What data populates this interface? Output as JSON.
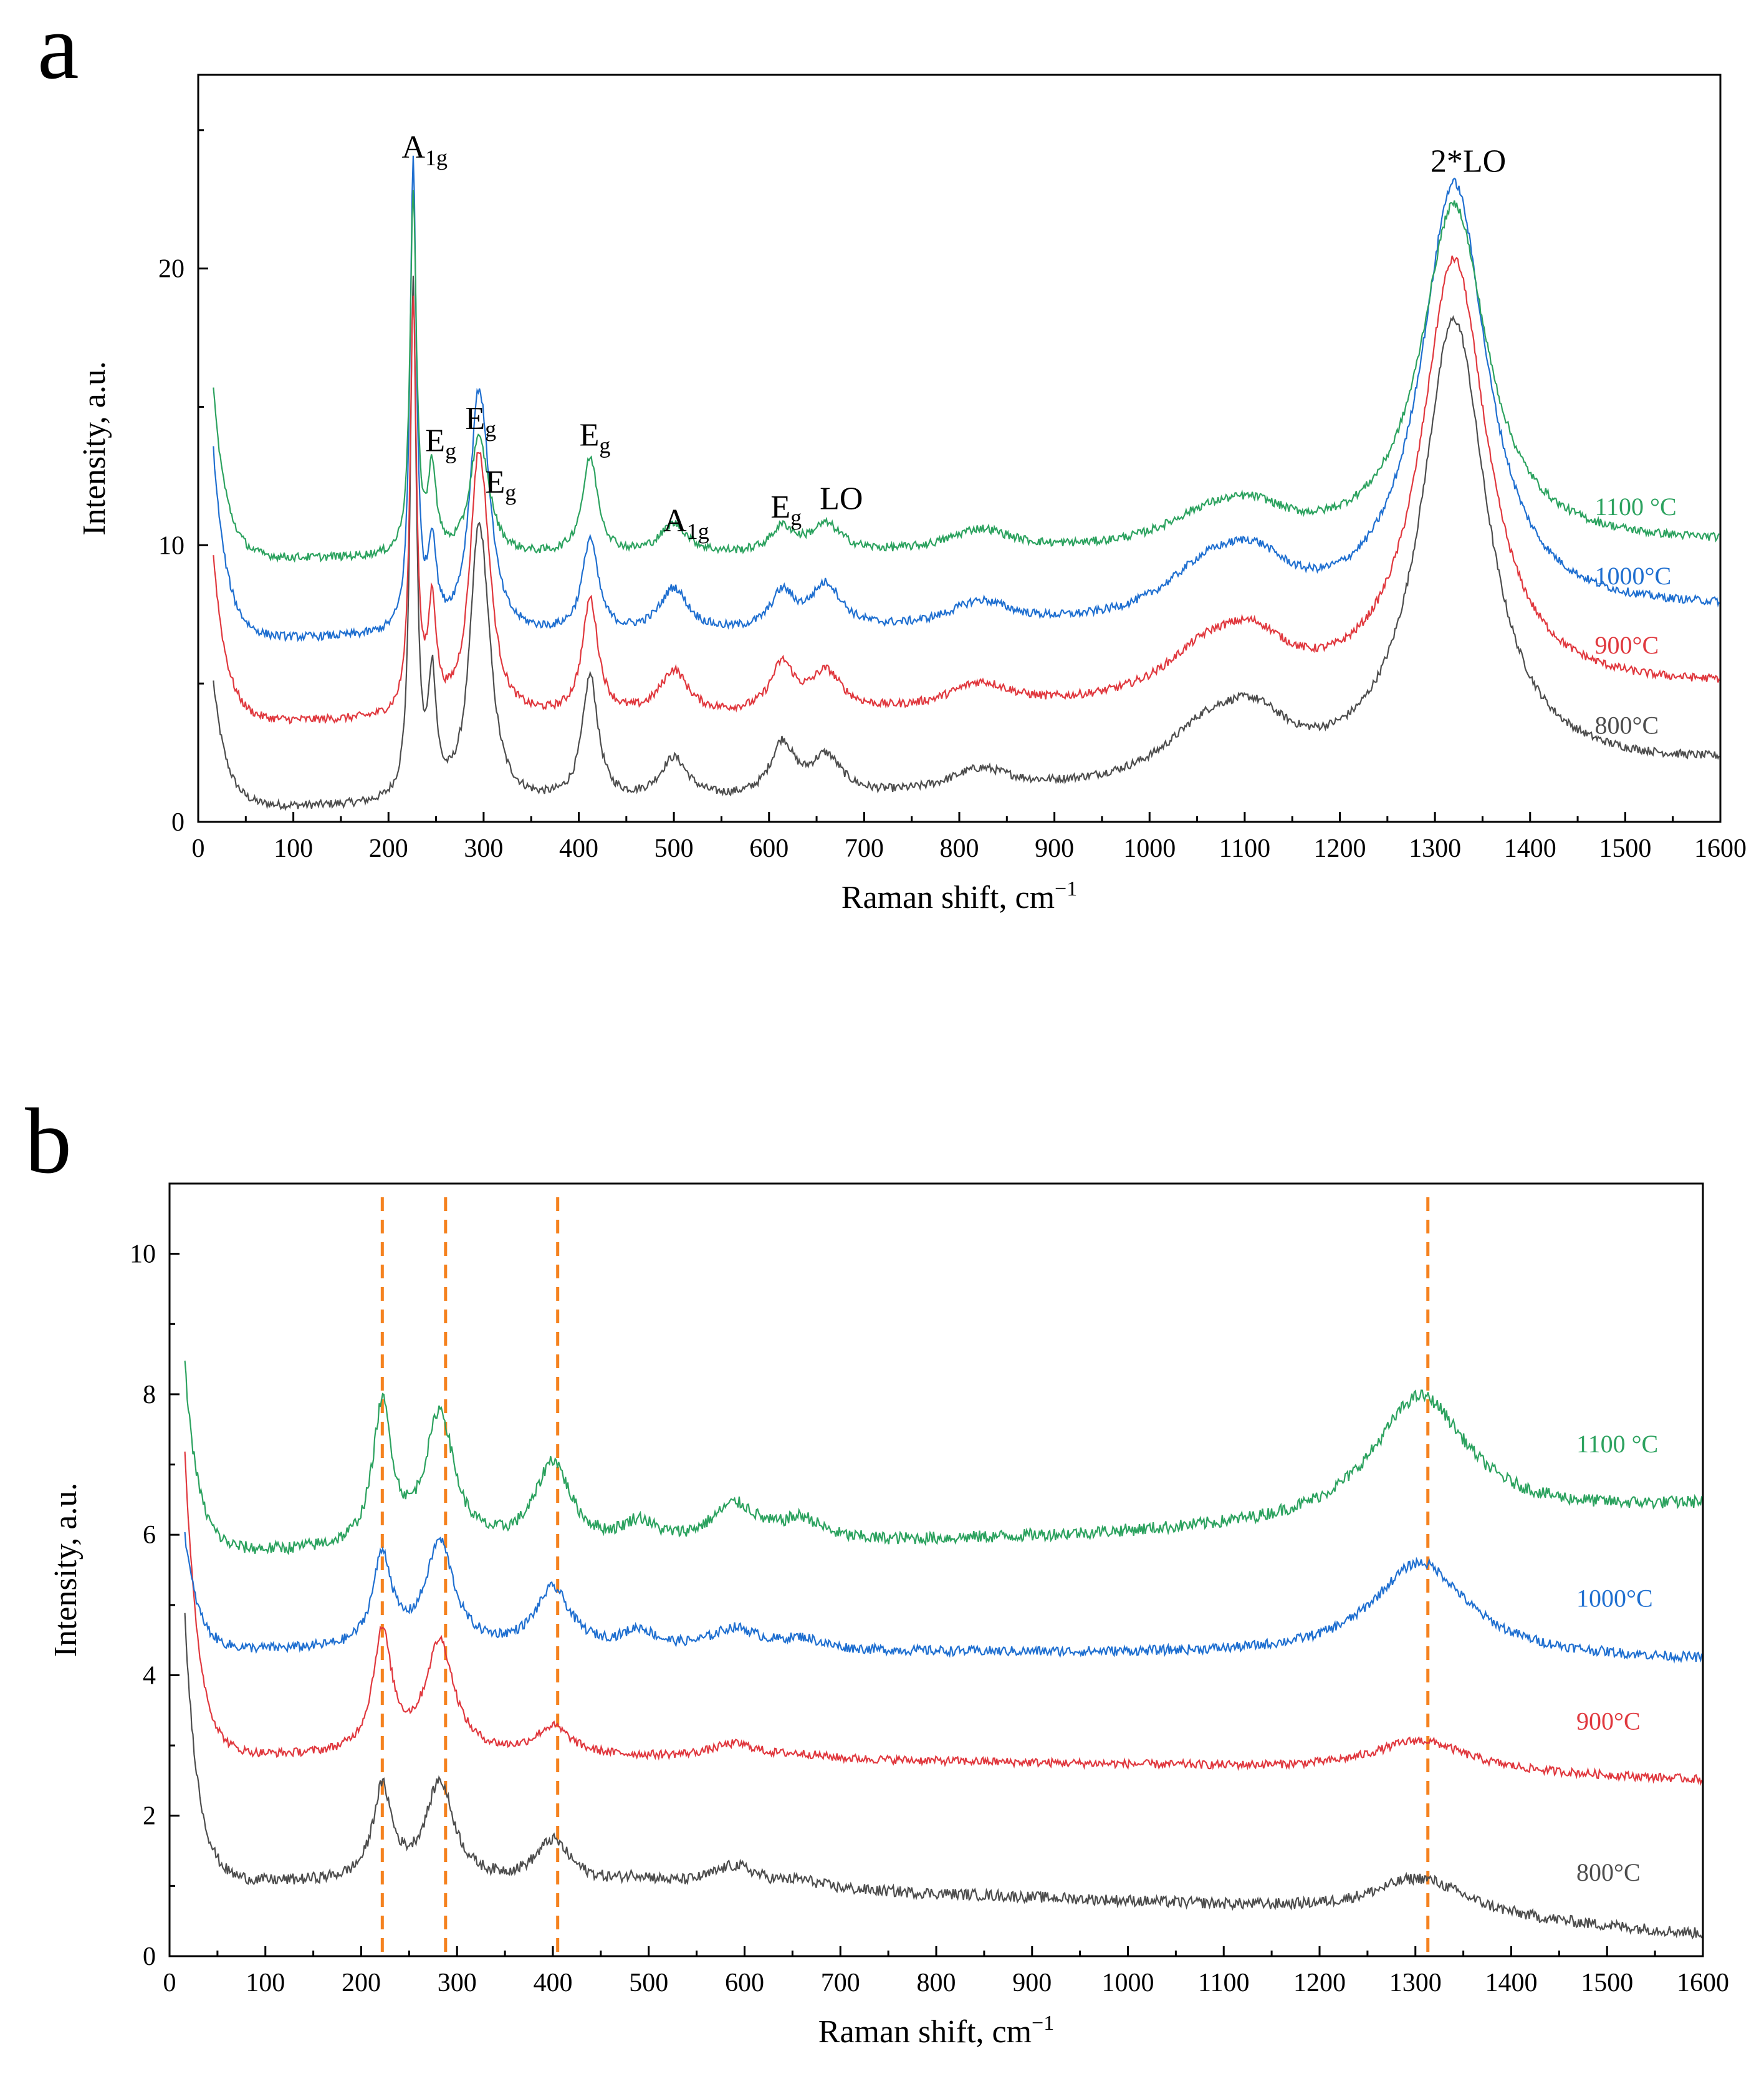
{
  "chart_data": [
    {
      "panel": "a",
      "type": "line",
      "xlabel": "Raman shift, cm",
      "xlabel_sup": "−1",
      "ylabel": "Intensity, a.u.",
      "xlim": [
        0,
        1600
      ],
      "ylim": [
        0,
        27
      ],
      "xticks": [
        0,
        100,
        200,
        300,
        400,
        500,
        600,
        700,
        800,
        900,
        1000,
        1100,
        1200,
        1300,
        1400,
        1500,
        1600
      ],
      "yticks": [
        0,
        10,
        20
      ],
      "grid": false,
      "legend_position": "right, next to each trace",
      "series": [
        {
          "name": "800°C",
          "color": "#4d4d4d",
          "baseline": 0.5,
          "tail": 2.0,
          "start": 5.0,
          "noise": 0.15
        },
        {
          "name": "900°C",
          "color": "#e0383e",
          "baseline": 3.6,
          "tail": 4.8,
          "start": 9.6,
          "noise": 0.15
        },
        {
          "name": "1000°C",
          "color": "#1f6fd0",
          "baseline": 6.6,
          "tail": 7.6,
          "start": 13.4,
          "noise": 0.15
        },
        {
          "name": "1100 °C",
          "color": "#2ca25f",
          "baseline": 9.5,
          "tail": 10.0,
          "start": 15.6,
          "noise": 0.15
        }
      ],
      "peaks": [
        {
          "x": 226,
          "heights": [
            18.5,
            15.0,
            17.0,
            13.0
          ],
          "width": 4
        },
        {
          "x": 246,
          "heights": [
            4.2,
            3.8,
            3.0,
            3.0
          ],
          "width": 5
        },
        {
          "x": 293,
          "heights": [
            6.0,
            6.0,
            5.5,
            2.8
          ],
          "width": 10
        },
        {
          "x": 300,
          "heights": [
            5.0,
            4.5,
            4.2,
            1.8
          ],
          "width": 12
        },
        {
          "x": 412,
          "heights": [
            4.5,
            4.2,
            3.4,
            3.5
          ],
          "width": 10
        },
        {
          "x": 500,
          "heights": [
            1.5,
            1.6,
            1.6,
            1.1
          ],
          "width": 18
        },
        {
          "x": 614,
          "heights": [
            1.9,
            1.7,
            1.3,
            0.9
          ],
          "width": 15
        },
        {
          "x": 660,
          "heights": [
            1.4,
            1.4,
            1.6,
            1.0
          ],
          "width": 20
        },
        {
          "x": 822,
          "heights": [
            0.8,
            0.9,
            0.9,
            0.8
          ],
          "width": 40
        },
        {
          "x": 1060,
          "heights": [
            1.7,
            1.6,
            1.6,
            1.0
          ],
          "width": 55
        },
        {
          "x": 1110,
          "heights": [
            1.7,
            1.6,
            1.6,
            1.0
          ],
          "width": 45
        },
        {
          "x": 1320,
          "heights": [
            16.5,
            15.8,
            15.7,
            12.4
          ],
          "width": 42
        }
      ],
      "annotations": [
        {
          "base": "A",
          "sub": "1g",
          "x": 238,
          "y": 24.0
        },
        {
          "base": "E",
          "sub": "g",
          "x": 255,
          "y": 13.4
        },
        {
          "base": "E",
          "sub": "g",
          "x": 297,
          "y": 14.2
        },
        {
          "base": "E",
          "sub": "g",
          "x": 318,
          "y": 11.9
        },
        {
          "base": "E",
          "sub": "g",
          "x": 417,
          "y": 13.6
        },
        {
          "base": "A",
          "sub": "1g",
          "x": 513,
          "y": 10.5
        },
        {
          "base": "E",
          "sub": "g",
          "x": 618,
          "y": 11.0
        },
        {
          "base": "LO",
          "sub": "",
          "x": 676,
          "y": 11.3
        },
        {
          "base": "2*LO",
          "sub": "",
          "x": 1335,
          "y": 23.5
        }
      ],
      "legend_labels": [
        {
          "text": "1100 °C",
          "y": 11.4
        },
        {
          "text": "1000°C",
          "y": 8.9
        },
        {
          "text": "900°C",
          "y": 6.4
        },
        {
          "text": "800°C",
          "y": 3.5
        }
      ]
    },
    {
      "panel": "b",
      "type": "line",
      "xlabel": "Raman shift, cm",
      "xlabel_sup": "−1",
      "ylabel": "Intensity, a.u.",
      "xlim": [
        0,
        1600
      ],
      "ylim": [
        0,
        11
      ],
      "xticks": [
        0,
        100,
        200,
        300,
        400,
        500,
        600,
        700,
        800,
        900,
        1000,
        1100,
        1200,
        1300,
        1400,
        1500,
        1600
      ],
      "yticks": [
        0,
        2,
        4,
        6,
        8,
        10
      ],
      "grid": false,
      "legend_position": "right, next to each trace",
      "dashed_lines": [
        222,
        288,
        405,
        1313
      ],
      "series": [
        {
          "name": "800°C",
          "color": "#4d4d4d",
          "baseline": 1.05,
          "tail": 0.3,
          "start": 4.8,
          "noise": 0.08
        },
        {
          "name": "900°C",
          "color": "#e0383e",
          "baseline": 2.85,
          "tail": 2.5,
          "start": 7.2,
          "noise": 0.06
        },
        {
          "name": "1000°C",
          "color": "#1f6fd0",
          "baseline": 4.35,
          "tail": 4.2,
          "start": 6.0,
          "noise": 0.07
        },
        {
          "name": "1100 °C",
          "color": "#2ca25f",
          "baseline": 5.75,
          "tail": 6.4,
          "start": 8.4,
          "noise": 0.09
        }
      ],
      "peaks": [
        {
          "x": 222,
          "heights": [
            1.3,
            1.7,
            1.3,
            2.0
          ],
          "width": 12
        },
        {
          "x": 282,
          "heights": [
            1.4,
            1.6,
            1.5,
            1.9
          ],
          "width": 18
        },
        {
          "x": 400,
          "heights": [
            0.6,
            0.4,
            0.85,
            1.2
          ],
          "width": 22
        },
        {
          "x": 490,
          "heights": [
            0.1,
            0.0,
            0.25,
            0.3
          ],
          "width": 20
        },
        {
          "x": 590,
          "heights": [
            0.3,
            0.2,
            0.3,
            0.55
          ],
          "width": 30
        },
        {
          "x": 660,
          "heights": [
            0.1,
            0.05,
            0.15,
            0.3
          ],
          "width": 25
        },
        {
          "x": 1305,
          "heights": [
            0.55,
            0.45,
            1.35,
            1.8
          ],
          "width": 60
        }
      ],
      "legend_labels": [
        {
          "text": "1100 °C",
          "y": 7.3
        },
        {
          "text": "1000°C",
          "y": 5.1
        },
        {
          "text": "900°C",
          "y": 3.35
        },
        {
          "text": "800°C",
          "y": 1.2
        }
      ]
    }
  ],
  "labels": {
    "panel_a": "a",
    "panel_b": "b"
  },
  "colors": {
    "dashed": "#f5821f",
    "axis": "#000000"
  }
}
